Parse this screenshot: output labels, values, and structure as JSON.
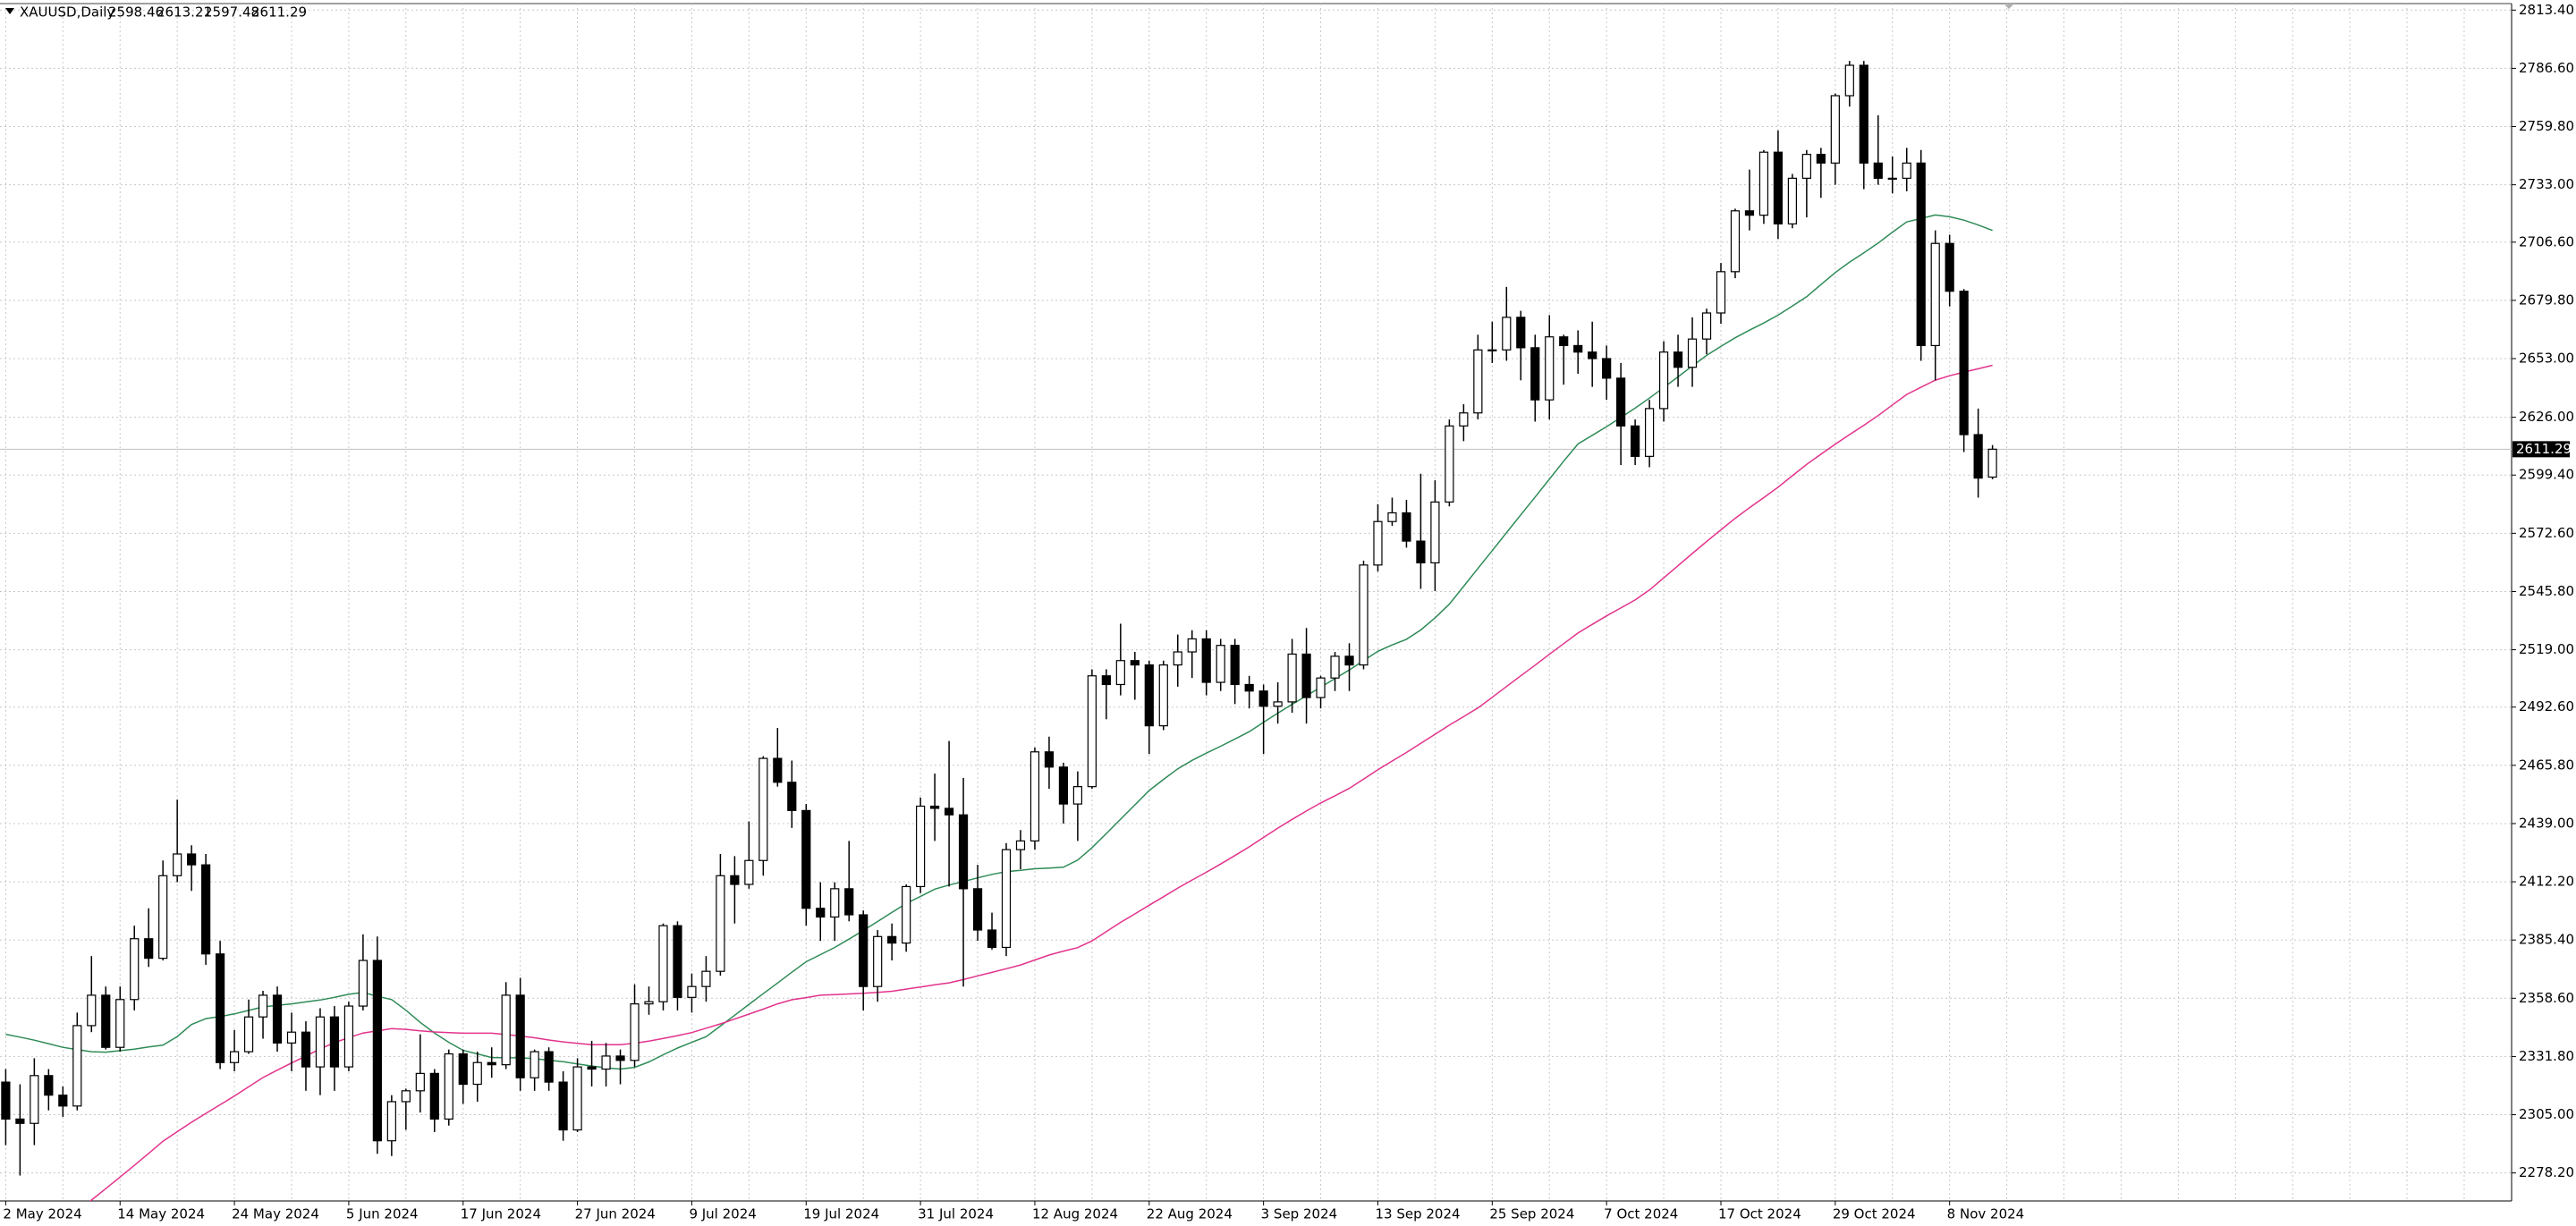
{
  "chart_data": {
    "type": "candlestick",
    "title": "XAUUSD,Daily",
    "categories": [
      "2 May 2024",
      null,
      null,
      null,
      null,
      null,
      null,
      null,
      "14 May 2024",
      null,
      null,
      null,
      null,
      null,
      null,
      null,
      "24 May 2024",
      null,
      null,
      null,
      null,
      null,
      null,
      null,
      "5 Jun 2024",
      null,
      null,
      null,
      null,
      null,
      null,
      null,
      "17 Jun 2024",
      null,
      null,
      null,
      null,
      null,
      null,
      null,
      "27 Jun 2024",
      null,
      null,
      null,
      null,
      null,
      null,
      null,
      "9 Jul 2024",
      null,
      null,
      null,
      null,
      null,
      null,
      null,
      "19 Jul 2024",
      null,
      null,
      null,
      null,
      null,
      null,
      null,
      "31 Jul 2024",
      null,
      null,
      null,
      null,
      null,
      null,
      null,
      "12 Aug 2024",
      null,
      null,
      null,
      null,
      null,
      null,
      null,
      "22 Aug 2024",
      null,
      null,
      null,
      null,
      null,
      null,
      null,
      "3 Sep 2024",
      null,
      null,
      null,
      null,
      null,
      null,
      null,
      "13 Sep 2024",
      null,
      null,
      null,
      null,
      null,
      null,
      null,
      "25 Sep 2024",
      null,
      null,
      null,
      null,
      null,
      null,
      null,
      "7 Oct 2024",
      null,
      null,
      null,
      null,
      null,
      null,
      null,
      "17 Oct 2024",
      null,
      null,
      null,
      null,
      null,
      null,
      null,
      "29 Oct 2024",
      null,
      null,
      null,
      null,
      null,
      null,
      null,
      "8 Nov 2024",
      null,
      null,
      null
    ],
    "open": [
      2320,
      2303,
      2301,
      2323,
      2314,
      2309,
      2346,
      2360,
      2336,
      2358,
      2386,
      2377,
      2415,
      2425,
      2420,
      2379,
      2329,
      2334,
      2350,
      2360,
      2338,
      2343,
      2327,
      2350,
      2327,
      2355,
      2376,
      2293,
      2311,
      2316,
      2324,
      2303,
      2333,
      2319,
      2329,
      2328,
      2360,
      2322,
      2334,
      2320,
      2298,
      2327,
      2326,
      2332,
      2330,
      2356,
      2357,
      2392,
      2359,
      2364,
      2371,
      2415,
      2411,
      2422,
      2469,
      2458,
      2445,
      2400,
      2396,
      2409,
      2397,
      2364,
      2387,
      2384,
      2410,
      2447,
      2446,
      2443,
      2409,
      2390,
      2382,
      2427,
      2431,
      2472,
      2465,
      2448,
      2456,
      2507,
      2503,
      2514,
      2512,
      2484,
      2512,
      2518,
      2524,
      2504,
      2521,
      2503,
      2500,
      2493,
      2495,
      2517,
      2497,
      2506,
      2516,
      2512,
      2558,
      2578,
      2582,
      2569,
      2559,
      2587,
      2622,
      2628,
      2657,
      2657,
      2672,
      2658,
      2634,
      2663,
      2659,
      2656,
      2653,
      2644,
      2622,
      2608,
      2630,
      2656,
      2649,
      2662,
      2674,
      2693,
      2721,
      2719,
      2748,
      2715,
      2736,
      2747,
      2743,
      2774,
      2788,
      2743,
      2736,
      2736,
      2743,
      2659,
      2706,
      2684,
      2618,
      2598.46
    ],
    "high": [
      2326,
      2319,
      2331,
      2326,
      2318,
      2352,
      2378,
      2364,
      2364,
      2392,
      2400,
      2422,
      2450,
      2429,
      2425,
      2385,
      2344,
      2358,
      2362,
      2364,
      2352,
      2348,
      2354,
      2355,
      2357,
      2388,
      2387,
      2314,
      2317,
      2342,
      2326,
      2335,
      2335,
      2334,
      2336,
      2366,
      2368,
      2335,
      2336,
      2325,
      2331,
      2339,
      2338,
      2335,
      2365,
      2364,
      2393,
      2394,
      2370,
      2378,
      2425,
      2424,
      2440,
      2470,
      2483,
      2468,
      2448,
      2412,
      2412,
      2431,
      2399,
      2390,
      2393,
      2411,
      2451,
      2462,
      2477,
      2460,
      2420,
      2398,
      2430,
      2436,
      2474,
      2479,
      2467,
      2463,
      2510,
      2510,
      2531,
      2518,
      2514,
      2514,
      2526,
      2528,
      2528,
      2524,
      2524,
      2507,
      2503,
      2504,
      2524,
      2529,
      2507,
      2518,
      2522,
      2560,
      2586,
      2589,
      2588,
      2600,
      2597,
      2625,
      2632,
      2664,
      2670,
      2686,
      2675,
      2664,
      2673,
      2664,
      2666,
      2670,
      2659,
      2651,
      2625,
      2634,
      2661,
      2664,
      2672,
      2676,
      2697,
      2722,
      2740,
      2749,
      2758,
      2738,
      2749,
      2750,
      2775,
      2790,
      2790,
      2765,
      2746,
      2750,
      2749,
      2712,
      2710,
      2685,
      2630,
      2613.21
    ],
    "low": [
      2291,
      2277,
      2291,
      2307,
      2304,
      2307,
      2343,
      2335,
      2334,
      2353,
      2373,
      2376,
      2412,
      2408,
      2374,
      2326,
      2325,
      2333,
      2340,
      2334,
      2325,
      2316,
      2314,
      2316,
      2325,
      2353,
      2287,
      2286,
      2298,
      2306,
      2297,
      2300,
      2310,
      2311,
      2322,
      2326,
      2316,
      2316,
      2316,
      2293,
      2297,
      2318,
      2318,
      2319,
      2327,
      2351,
      2353,
      2353,
      2352,
      2357,
      2369,
      2393,
      2409,
      2415,
      2456,
      2437,
      2392,
      2385,
      2385,
      2394,
      2353,
      2357,
      2376,
      2380,
      2407,
      2431,
      2410,
      2364,
      2385,
      2381,
      2378,
      2418,
      2427,
      2455,
      2439,
      2431,
      2455,
      2487,
      2498,
      2496,
      2471,
      2482,
      2502,
      2506,
      2498,
      2500,
      2494,
      2492,
      2471,
      2485,
      2490,
      2485,
      2492,
      2500,
      2500,
      2510,
      2555,
      2576,
      2566,
      2547,
      2546,
      2585,
      2615,
      2625,
      2651,
      2652,
      2643,
      2624,
      2625,
      2641,
      2646,
      2640,
      2634,
      2604,
      2604,
      2603,
      2624,
      2640,
      2640,
      2655,
      2669,
      2690,
      2712,
      2715,
      2708,
      2713,
      2718,
      2727,
      2733,
      2769,
      2731,
      2733,
      2729,
      2730,
      2652,
      2643,
      2677,
      2610,
      2589,
      2597.48
    ],
    "close": [
      2303,
      2301,
      2323,
      2314,
      2309,
      2346,
      2360,
      2336,
      2358,
      2386,
      2377,
      2415,
      2425,
      2420,
      2379,
      2329,
      2334,
      2350,
      2360,
      2338,
      2343,
      2327,
      2350,
      2327,
      2355,
      2376,
      2293,
      2311,
      2316,
      2324,
      2303,
      2333,
      2319,
      2329,
      2328,
      2360,
      2322,
      2334,
      2320,
      2298,
      2327,
      2326,
      2332,
      2330,
      2356,
      2357,
      2392,
      2359,
      2364,
      2371,
      2415,
      2411,
      2422,
      2469,
      2458,
      2445,
      2400,
      2396,
      2409,
      2397,
      2364,
      2387,
      2384,
      2410,
      2447,
      2446,
      2443,
      2409,
      2390,
      2382,
      2427,
      2431,
      2472,
      2465,
      2448,
      2456,
      2507,
      2503,
      2514,
      2512,
      2484,
      2512,
      2518,
      2524,
      2504,
      2521,
      2503,
      2500,
      2493,
      2495,
      2517,
      2497,
      2506,
      2516,
      2512,
      2558,
      2578,
      2582,
      2569,
      2559,
      2587,
      2622,
      2628,
      2657,
      2657,
      2672,
      2658,
      2634,
      2663,
      2659,
      2656,
      2653,
      2644,
      2622,
      2608,
      2630,
      2656,
      2649,
      2662,
      2674,
      2693,
      2721,
      2719,
      2748,
      2715,
      2736,
      2747,
      2743,
      2774,
      2788,
      2743,
      2736,
      2736,
      2743,
      2659,
      2706,
      2684,
      2618,
      2598,
      2611.29
    ],
    "up_color": "#ffffff",
    "down_color": "#000000",
    "moving_averages": [
      {
        "color": "#2e8b57",
        "values": [
          2342.0,
          2340.7,
          2339.3,
          2337.7,
          2336.0,
          2335.0,
          2334.0,
          2333.8,
          2334.5,
          2335.2,
          2336.2,
          2337.0,
          2341.0,
          2346.5,
          2349.2,
          2350.2,
          2351.4,
          2353.0,
          2354.6,
          2355.3,
          2356.0,
          2356.9,
          2357.8,
          2359.0,
          2360.4,
          2361.3,
          2359.5,
          2358.0,
          2353.1,
          2347.5,
          2342.6,
          2338.3,
          2334.6,
          2333.0,
          2331.3,
          2331.2,
          2331.2,
          2330.8,
          2330.1,
          2329.4,
          2328.4,
          2327.4,
          2326.6,
          2326.0,
          2326.8,
          2329.3,
          2332.6,
          2335.7,
          2338.3,
          2340.9,
          2345.8,
          2350.8,
          2355.8,
          2360.7,
          2365.6,
          2370.6,
          2375.4,
          2378.7,
          2382.0,
          2385.8,
          2389.8,
          2393.9,
          2398.1,
          2402.2,
          2405.5,
          2408.8,
          2410.7,
          2412.3,
          2414.0,
          2415.6,
          2416.9,
          2417.5,
          2418.2,
          2418.5,
          2418.9,
          2422.2,
          2427.9,
          2434.4,
          2441.0,
          2447.6,
          2454.2,
          2459.3,
          2464.2,
          2468.1,
          2471.4,
          2474.6,
          2477.9,
          2481.3,
          2485.6,
          2489.8,
          2493.9,
          2497.8,
          2501.8,
          2505.7,
          2509.7,
          2514.0,
          2518.3,
          2521.2,
          2523.8,
          2528.1,
          2533.7,
          2540.0,
          2548.2,
          2556.4,
          2564.6,
          2572.9,
          2581.1,
          2589.3,
          2597.5,
          2605.8,
          2613.7,
          2617.7,
          2621.7,
          2625.9,
          2630.2,
          2634.8,
          2639.7,
          2644.6,
          2649.6,
          2654.5,
          2658.6,
          2662.6,
          2666.1,
          2669.4,
          2673.0,
          2677.2,
          2681.5,
          2687.1,
          2692.6,
          2697.4,
          2701.7,
          2706.2,
          2711.2,
          2715.9,
          2717.5,
          2719.1,
          2718.3,
          2716.7,
          2714.5,
          2712.0
        ]
      },
      {
        "color": "#e2338c",
        "values": [
          2234.0,
          2239.3,
          2244.6,
          2249.8,
          2255.1,
          2260.4,
          2265.7,
          2271.0,
          2276.3,
          2281.7,
          2287.2,
          2292.8,
          2297.2,
          2301.5,
          2305.6,
          2309.6,
          2313.6,
          2317.9,
          2322.1,
          2325.5,
          2328.8,
          2332.0,
          2335.3,
          2338.2,
          2340.5,
          2342.6,
          2343.6,
          2344.6,
          2344.3,
          2343.6,
          2343.1,
          2342.8,
          2342.5,
          2342.5,
          2342.5,
          2341.9,
          2341.2,
          2340.4,
          2339.4,
          2338.5,
          2337.8,
          2337.2,
          2337.2,
          2337.2,
          2337.9,
          2338.9,
          2340.1,
          2341.4,
          2342.8,
          2344.8,
          2346.8,
          2349.0,
          2351.3,
          2353.6,
          2356.0,
          2357.9,
          2358.9,
          2360.0,
          2360.3,
          2360.6,
          2360.9,
          2361.3,
          2361.8,
          2362.8,
          2363.8,
          2364.8,
          2365.7,
          2367.2,
          2368.9,
          2370.5,
          2372.2,
          2373.9,
          2376.2,
          2378.5,
          2380.3,
          2381.9,
          2385.0,
          2389.3,
          2393.5,
          2397.4,
          2401.4,
          2405.3,
          2409.3,
          2413.0,
          2416.6,
          2420.4,
          2424.3,
          2428.3,
          2432.6,
          2436.9,
          2440.9,
          2444.8,
          2448.5,
          2451.8,
          2455.2,
          2459.5,
          2463.8,
          2467.8,
          2471.7,
          2475.9,
          2480.1,
          2484.3,
          2488.2,
          2492.2,
          2497.1,
          2502.1,
          2507.0,
          2511.9,
          2516.9,
          2521.8,
          2526.7,
          2530.7,
          2534.6,
          2538.2,
          2541.9,
          2546.5,
          2552.1,
          2557.7,
          2563.3,
          2568.8,
          2574.2,
          2579.5,
          2584.4,
          2589.0,
          2593.8,
          2599.1,
          2604.3,
          2609.0,
          2613.6,
          2618.0,
          2622.3,
          2626.8,
          2631.7,
          2636.5,
          2639.8,
          2643.1,
          2645.1,
          2646.8,
          2648.3,
          2649.9
        ]
      }
    ],
    "ylim": [
      2265.3,
      2816.4
    ],
    "yticks": [
      {
        "value": 2813.4,
        "label": "2813.40"
      },
      {
        "value": 2786.6,
        "label": "2786.60"
      },
      {
        "value": 2759.8,
        "label": "2759.80"
      },
      {
        "value": 2733,
        "label": "2733.00"
      },
      {
        "value": 2706.6,
        "label": "2706.60"
      },
      {
        "value": 2679.8,
        "label": "2679.80"
      },
      {
        "value": 2653,
        "label": "2653.00"
      },
      {
        "value": 2626,
        "label": "2626.00"
      },
      {
        "value": 2599.4,
        "label": "2599.40"
      },
      {
        "value": 2572.6,
        "label": "2572.60"
      },
      {
        "value": 2545.8,
        "label": "2545.80"
      },
      {
        "value": 2519,
        "label": "2519.00"
      },
      {
        "value": 2492.6,
        "label": "2492.60"
      },
      {
        "value": 2465.8,
        "label": "2465.80"
      },
      {
        "value": 2439,
        "label": "2439.00"
      },
      {
        "value": 2412.2,
        "label": "2412.20"
      },
      {
        "value": 2385.4,
        "label": "2385.40"
      },
      {
        "value": 2358.6,
        "label": "2358.60"
      },
      {
        "value": 2331.8,
        "label": "2331.80"
      },
      {
        "value": 2305,
        "label": "2305.00"
      },
      {
        "value": 2278.2,
        "label": "2278.20"
      }
    ],
    "grid": true
  }
}
